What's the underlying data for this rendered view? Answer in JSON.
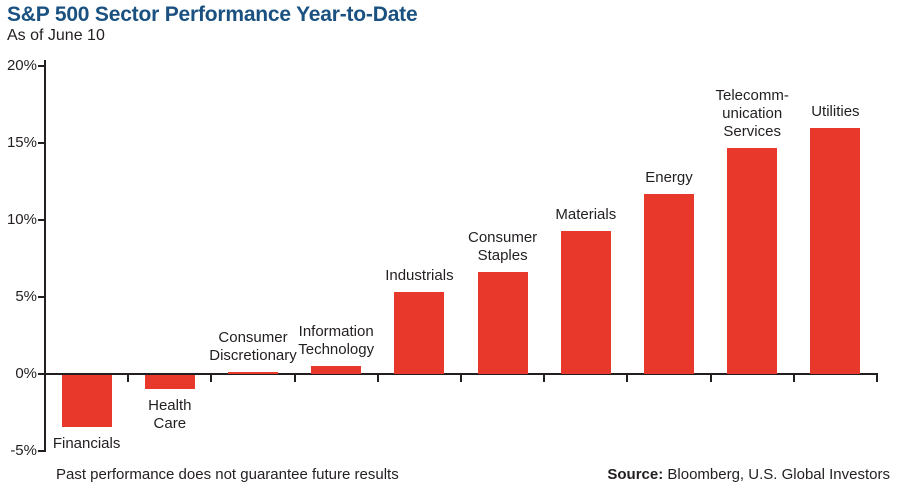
{
  "header": {
    "title": "S&P 500 Sector Performance Year-to-Date",
    "subtitle": "As of June 10"
  },
  "footer": {
    "disclaimer": "Past performance does not guarantee future results",
    "source_label": "Source:",
    "source_text": "Bloomberg, U.S. Global Investors"
  },
  "chart_data": {
    "type": "bar",
    "title": "S&P 500 Sector Performance Year-to-Date",
    "subtitle": "As of June 10",
    "categories": [
      "Financials",
      "Health Care",
      "Consumer Discretionary",
      "Information Technology",
      "Industrials",
      "Consumer Staples",
      "Materials",
      "Energy",
      "Telecommunication Services",
      "Utilities"
    ],
    "category_label_lines": [
      [
        "Financials"
      ],
      [
        "Health",
        "Care"
      ],
      [
        "Consumer",
        "Discretionary"
      ],
      [
        "Information",
        "Technology"
      ],
      [
        "Industrials"
      ],
      [
        "Consumer",
        "Staples"
      ],
      [
        "Materials"
      ],
      [
        "Energy"
      ],
      [
        "Telecomm-",
        "unication",
        "Services"
      ],
      [
        "Utilities"
      ]
    ],
    "slugs": [
      "financials",
      "health-care",
      "consumer-discretionary",
      "information-technology",
      "industrials",
      "consumer-staples",
      "materials",
      "energy",
      "telecommunication-services",
      "utilities"
    ],
    "values": [
      -3.4,
      -0.9,
      0.1,
      0.5,
      5.3,
      6.6,
      9.3,
      11.7,
      14.7,
      16.0
    ],
    "unit": "%",
    "xlabel": "",
    "ylabel": "",
    "ylim": [
      -5,
      20
    ],
    "yticks": [
      20,
      15,
      10,
      5,
      0,
      -5
    ],
    "ytick_labels": [
      "20%",
      "15%",
      "10%",
      "5%",
      "0%",
      "-5%"
    ],
    "bar_color": "#E8382C",
    "axis_color": "#231F20",
    "title_color": "#1A5180",
    "grid": false,
    "legend": false,
    "label_position": "above-positive-below-negative"
  }
}
